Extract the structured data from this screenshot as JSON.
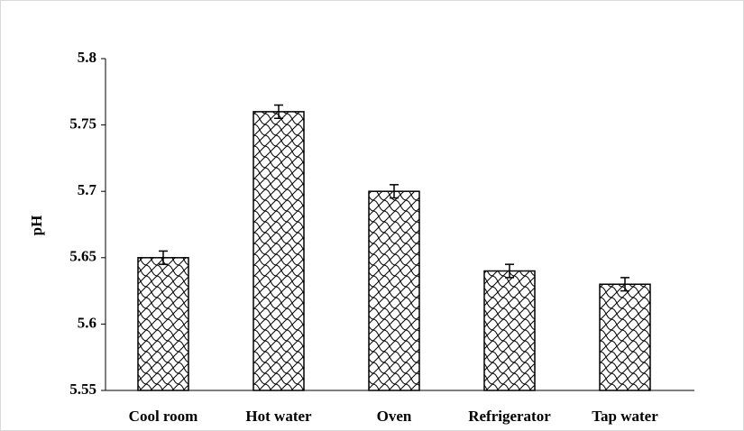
{
  "chart_data": {
    "type": "bar",
    "y_label": "pH",
    "categories": [
      "Cool room",
      "Hot water",
      "Oven",
      "Refrigerator",
      "Tap water"
    ],
    "values": [
      5.65,
      5.76,
      5.7,
      5.64,
      5.63
    ],
    "errors": [
      0.005,
      0.005,
      0.005,
      0.005,
      0.005
    ],
    "color": "#000000",
    "ylim": [
      5.55,
      5.8
    ],
    "yticks": [
      5.55,
      5.6,
      5.65,
      5.7,
      5.75,
      5.8
    ],
    "grid": false
  }
}
